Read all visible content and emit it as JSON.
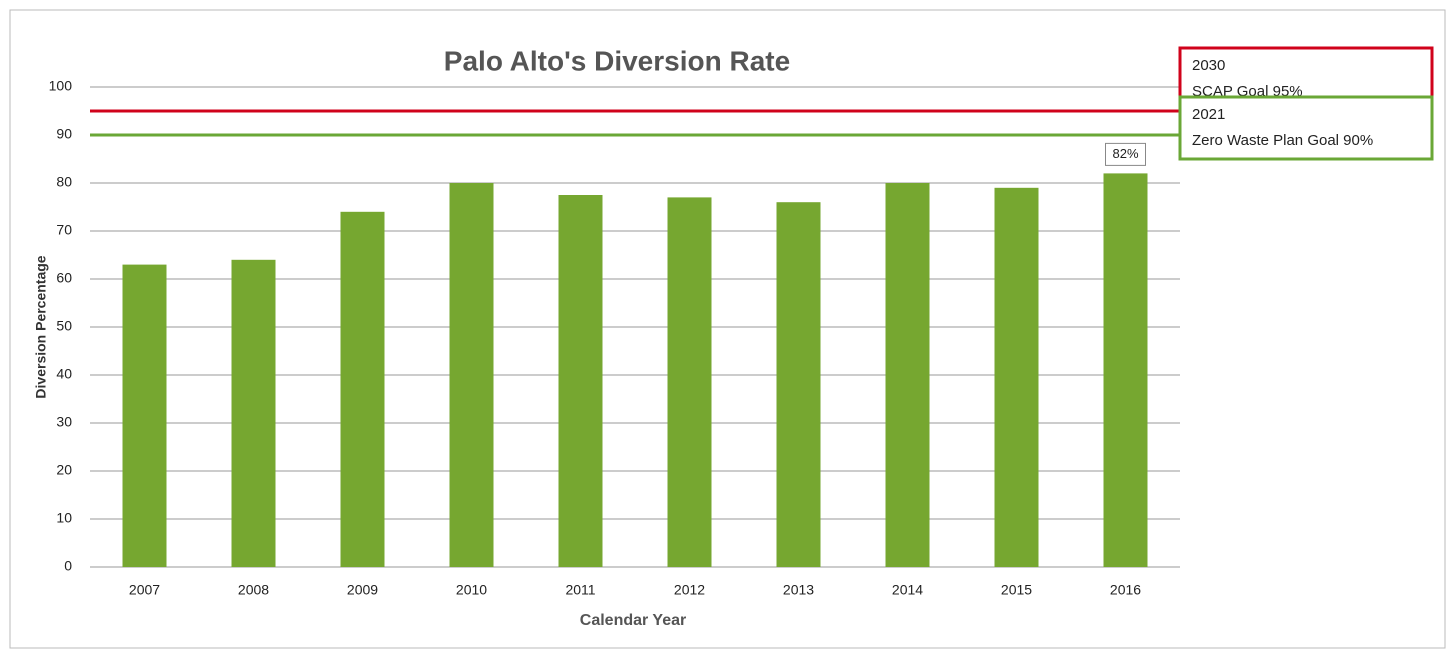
{
  "chart_data": {
    "type": "bar",
    "title": "Palo Alto's Diversion Rate",
    "x_label": "Calendar Year",
    "y_label": "Diversion Percentage",
    "categories": [
      "2007",
      "2008",
      "2009",
      "2010",
      "2011",
      "2012",
      "2013",
      "2014",
      "2015",
      "2016"
    ],
    "values": [
      63,
      64,
      74,
      80,
      77.5,
      77,
      76,
      80,
      79,
      82
    ],
    "value_labels": [
      null,
      null,
      null,
      null,
      null,
      null,
      null,
      null,
      null,
      "82%"
    ],
    "color": "#76a730",
    "ylim": [
      0,
      100
    ],
    "yticks": [
      0,
      10,
      20,
      30,
      40,
      50,
      60,
      70,
      80,
      90,
      100
    ],
    "grid": true,
    "reference_lines": [
      {
        "value": 95,
        "color": "#d0021b",
        "label_lines": [
          "2030",
          "SCAP Goal 95%"
        ]
      },
      {
        "value": 90,
        "color": "#6aa736",
        "label_lines": [
          "2021",
          "Zero Waste Plan Goal 90%"
        ]
      }
    ]
  }
}
